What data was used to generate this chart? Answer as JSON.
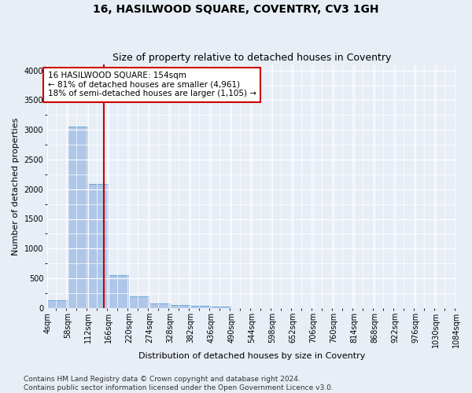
{
  "title": "16, HASILWOOD SQUARE, COVENTRY, CV3 1GH",
  "subtitle": "Size of property relative to detached houses in Coventry",
  "xlabel": "Distribution of detached houses by size in Coventry",
  "ylabel": "Number of detached properties",
  "bin_edges": [
    4,
    58,
    112,
    166,
    220,
    274,
    328,
    382,
    436,
    490,
    544,
    598,
    652,
    706,
    760,
    814,
    868,
    922,
    976,
    1030,
    1084
  ],
  "bar_heights": [
    130,
    3050,
    2090,
    550,
    200,
    80,
    55,
    40,
    30,
    0,
    0,
    0,
    0,
    0,
    0,
    0,
    0,
    0,
    0,
    0
  ],
  "bar_color": "#aec6e8",
  "bar_edgecolor": "#6aaad4",
  "property_size": 154,
  "vline_color": "#cc0000",
  "annotation_text": "16 HASILWOOD SQUARE: 154sqm\n← 81% of detached houses are smaller (4,961)\n18% of semi-detached houses are larger (1,105) →",
  "annotation_box_color": "#ffffff",
  "annotation_box_edgecolor": "#cc0000",
  "ylim": [
    0,
    4100
  ],
  "yticks": [
    0,
    500,
    1000,
    1500,
    2000,
    2500,
    3000,
    3500,
    4000
  ],
  "footnote_line1": "Contains HM Land Registry data © Crown copyright and database right 2024.",
  "footnote_line2": "Contains public sector information licensed under the Open Government Licence v3.0.",
  "bg_color": "#e8eef6",
  "plot_bg_color": "#e8eef6",
  "grid_color": "#ffffff",
  "title_fontsize": 10,
  "subtitle_fontsize": 9,
  "axis_label_fontsize": 8,
  "tick_fontsize": 7,
  "annotation_fontsize": 7.5,
  "footnote_fontsize": 6.5
}
